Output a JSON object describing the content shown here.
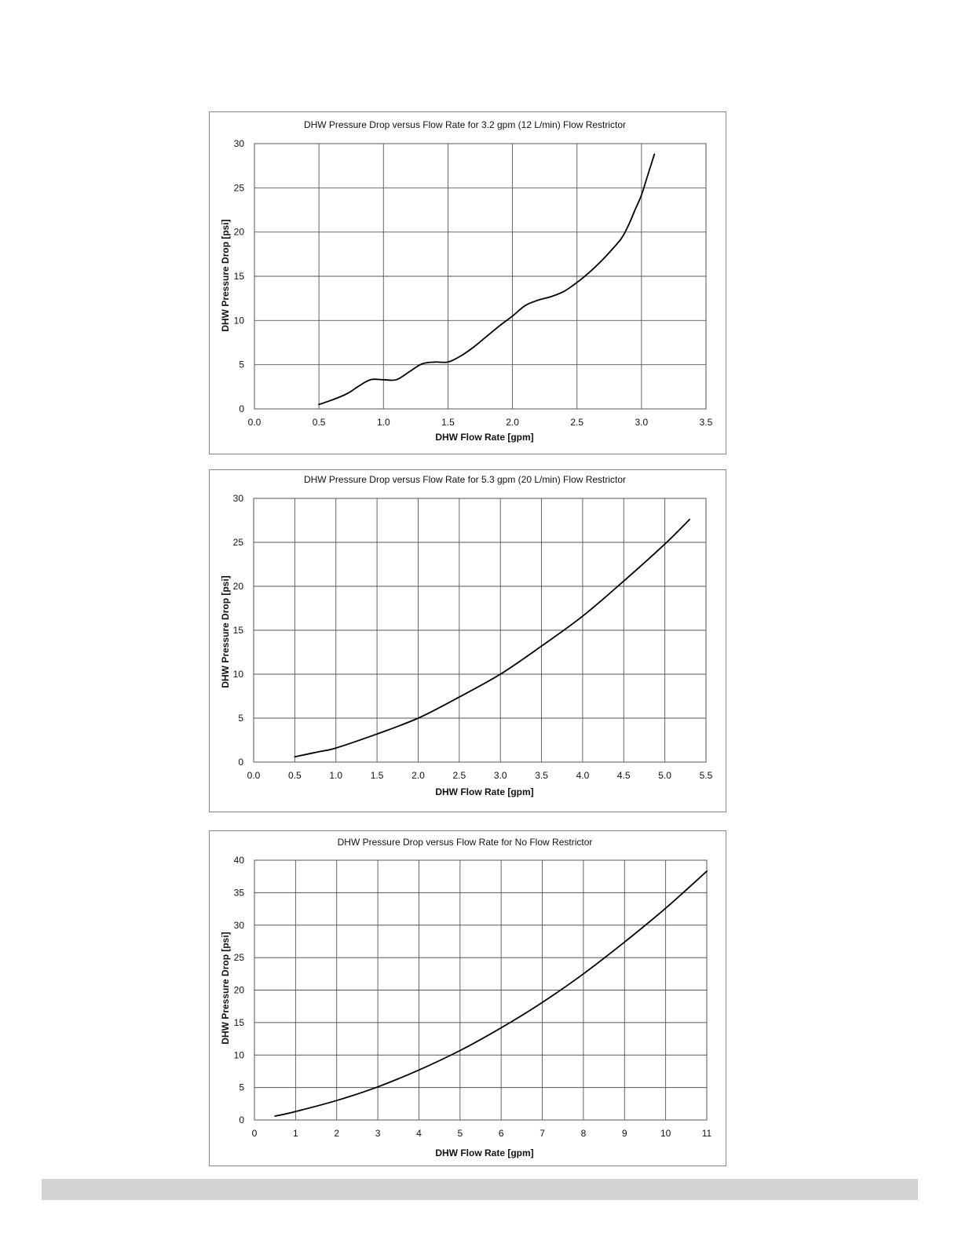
{
  "chart_data": [
    {
      "type": "line",
      "title": "DHW Pressure Drop versus Flow Rate for 3.2 gpm (12 L/min) Flow Restrictor",
      "xlabel": "DHW Flow Rate [gpm]",
      "ylabel": "DHW Pressure Drop [psi]",
      "xlim": [
        0,
        3.5
      ],
      "ylim": [
        0,
        30
      ],
      "x_ticks": [
        "0.0",
        "0.5",
        "1.0",
        "1.5",
        "2.0",
        "2.5",
        "3.0",
        "3.5"
      ],
      "y_ticks": [
        "0",
        "5",
        "10",
        "15",
        "20",
        "25",
        "30"
      ],
      "grid": true,
      "series": [
        {
          "x": [
            0.5,
            0.6,
            0.7,
            0.75,
            0.8,
            0.9,
            1.0,
            1.1,
            1.2,
            1.3,
            1.4,
            1.5,
            1.6,
            1.7,
            1.8,
            1.9,
            2.0,
            2.1,
            2.2,
            2.3,
            2.4,
            2.5,
            2.6,
            2.7,
            2.8,
            2.85,
            2.9,
            2.95,
            3.0,
            3.05,
            3.1
          ],
          "y": [
            0.5,
            1.0,
            1.6,
            2.0,
            2.5,
            3.3,
            3.3,
            3.3,
            4.2,
            5.1,
            5.3,
            5.3,
            6.0,
            7.0,
            8.2,
            9.4,
            10.5,
            11.7,
            12.3,
            12.7,
            13.3,
            14.3,
            15.5,
            16.9,
            18.5,
            19.4,
            20.8,
            22.5,
            24.2,
            26.5,
            28.8
          ]
        }
      ]
    },
    {
      "type": "line",
      "title": "DHW Pressure Drop versus Flow Rate for 5.3 gpm (20 L/min) Flow Restrictor",
      "xlabel": "DHW Flow Rate [gpm]",
      "ylabel": "DHW Pressure Drop [psi]",
      "xlim": [
        0,
        5.5
      ],
      "ylim": [
        0,
        30
      ],
      "x_ticks": [
        "0.0",
        "0.5",
        "1.0",
        "1.5",
        "2.0",
        "2.5",
        "3.0",
        "3.5",
        "4.0",
        "4.5",
        "5.0",
        "5.5"
      ],
      "y_ticks": [
        "0",
        "5",
        "10",
        "15",
        "20",
        "25",
        "30"
      ],
      "grid": true,
      "series": [
        {
          "x": [
            0.5,
            0.8,
            1.0,
            1.5,
            2.0,
            2.5,
            3.0,
            3.5,
            4.0,
            4.5,
            5.0,
            5.3
          ],
          "y": [
            0.6,
            1.2,
            1.6,
            3.2,
            5.0,
            7.4,
            10.0,
            13.2,
            16.6,
            20.6,
            24.8,
            27.6
          ]
        }
      ]
    },
    {
      "type": "line",
      "title": "DHW Pressure Drop versus Flow Rate for No Flow Restrictor",
      "xlabel": "DHW Flow Rate [gpm]",
      "ylabel": "DHW Pressure Drop [psi]",
      "xlim": [
        0,
        11
      ],
      "ylim": [
        0,
        40
      ],
      "x_ticks": [
        "0",
        "1",
        "2",
        "3",
        "4",
        "5",
        "6",
        "7",
        "8",
        "9",
        "10",
        "11"
      ],
      "y_ticks": [
        "0",
        "5",
        "10",
        "15",
        "20",
        "25",
        "30",
        "35",
        "40"
      ],
      "grid": true,
      "series": [
        {
          "x": [
            0.5,
            1,
            2,
            3,
            4,
            5,
            6,
            7,
            8,
            9,
            10,
            11
          ],
          "y": [
            0.6,
            1.3,
            3.0,
            5.1,
            7.7,
            10.7,
            14.2,
            18.1,
            22.5,
            27.4,
            32.6,
            38.3
          ]
        }
      ]
    }
  ]
}
